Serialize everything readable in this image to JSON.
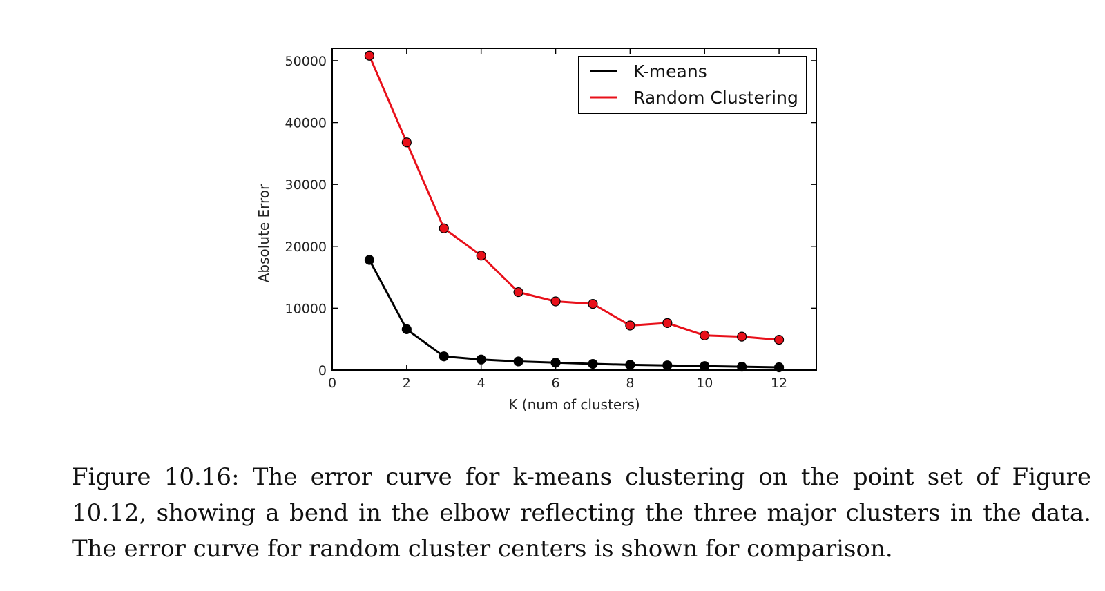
{
  "chart_data": {
    "type": "line",
    "xlabel": "K (num of clusters)",
    "ylabel": "Absolute Error",
    "xlim": [
      0,
      13
    ],
    "ylim": [
      0,
      52000
    ],
    "xticks": [
      0,
      2,
      4,
      6,
      8,
      10,
      12
    ],
    "yticks": [
      0,
      10000,
      20000,
      30000,
      40000,
      50000
    ],
    "legend_position": "top-right",
    "grid": false,
    "series": [
      {
        "name": "K-means",
        "color": "#000000",
        "x": [
          1,
          2,
          3,
          4,
          5,
          6,
          7,
          8,
          9,
          10,
          11,
          12
        ],
        "values": [
          17800,
          6600,
          2200,
          1700,
          1400,
          1200,
          1000,
          850,
          750,
          650,
          550,
          450
        ]
      },
      {
        "name": "Random Clustering",
        "color": "#e8101a",
        "x": [
          1,
          2,
          3,
          4,
          5,
          6,
          7,
          8,
          9,
          10,
          11,
          12
        ],
        "values": [
          50800,
          36800,
          22900,
          18500,
          12600,
          11100,
          10700,
          7200,
          7600,
          5600,
          5400,
          4900
        ]
      }
    ]
  },
  "caption": {
    "text": "Figure 10.16: The error curve for k-means clustering on the point set of Figure 10.12, showing a bend in the elbow reflecting the three major clusters in the data. The error curve for random cluster centers is shown for comparison."
  }
}
